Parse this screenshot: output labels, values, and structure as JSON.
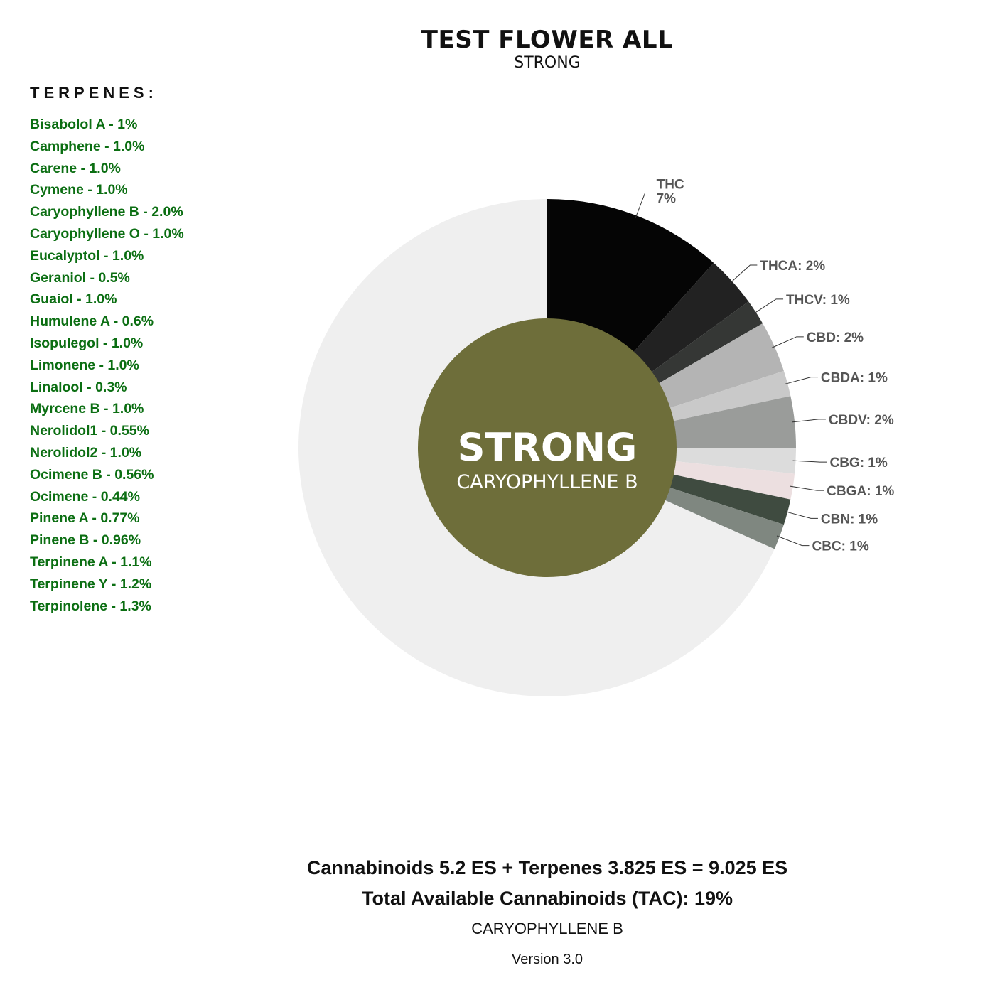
{
  "header": {
    "title": "TEST FLOWER ALL",
    "subtitle": "STRONG"
  },
  "terpenes": {
    "heading": "TERPENES:",
    "items": [
      "Bisabolol A - 1%",
      "Camphene - 1.0%",
      "Carene - 1.0%",
      "Cymene - 1.0%",
      "Caryophyllene B - 2.0%",
      "Caryophyllene O - 1.0%",
      "Eucalyptol - 1.0%",
      "Geraniol - 0.5%",
      "Guaiol - 1.0%",
      "Humulene A - 0.6%",
      "Isopulegol - 1.0%",
      "Limonene - 1.0%",
      "Linalool - 0.3%",
      "Myrcene B - 1.0%",
      "Nerolidol1 - 0.55%",
      "Nerolidol2 - 1.0%",
      "Ocimene B - 0.56%",
      "Ocimene - 0.44%",
      "Pinene A - 0.77%",
      "Pinene B - 0.96%",
      "Terpinene A - 1.1%",
      "Terpinene Y - 1.2%",
      "Terpinolene - 1.3%"
    ],
    "color": "#0b6e12"
  },
  "chart_data": {
    "type": "pie",
    "title": "TEST FLOWER ALL",
    "subtitle": "STRONG",
    "center_text": "STRONG",
    "center_subtext": "CARYOPHYLLENE B",
    "center_color": "#6e6e3a",
    "remainder_color": "#efefef",
    "slices": [
      {
        "name": "THC",
        "value": 7,
        "label": "THC 7%",
        "color": "#050505"
      },
      {
        "name": "THCA",
        "value": 2,
        "label": "THCA: 2%",
        "color": "#222222"
      },
      {
        "name": "THCV",
        "value": 1,
        "label": "THCV: 1%",
        "color": "#353735"
      },
      {
        "name": "CBD",
        "value": 2,
        "label": "CBD: 2%",
        "color": "#b4b4b4"
      },
      {
        "name": "CBDA",
        "value": 1,
        "label": "CBDA: 1%",
        "color": "#c9c9c9"
      },
      {
        "name": "CBDV",
        "value": 2,
        "label": "CBDV: 2%",
        "color": "#9a9c9a"
      },
      {
        "name": "CBG",
        "value": 1,
        "label": "CBG: 1%",
        "color": "#dcdcdc"
      },
      {
        "name": "CBGA",
        "value": 1,
        "label": "CBGA: 1%",
        "color": "#ecdfe0"
      },
      {
        "name": "CBN",
        "value": 1,
        "label": "CBN: 1%",
        "color": "#3f4b40"
      },
      {
        "name": "CBC",
        "value": 1,
        "label": "CBC: 1%",
        "color": "#7f8780"
      }
    ],
    "total": 60
  },
  "footer": {
    "formula": "Cannabinoids 5.2 ES + Terpenes 3.825 ES = 9.025 ES",
    "tac": "Total Available Cannabinoids (TAC): 19%",
    "dominant": "CARYOPHYLLENE B",
    "version": "Version 3.0"
  }
}
